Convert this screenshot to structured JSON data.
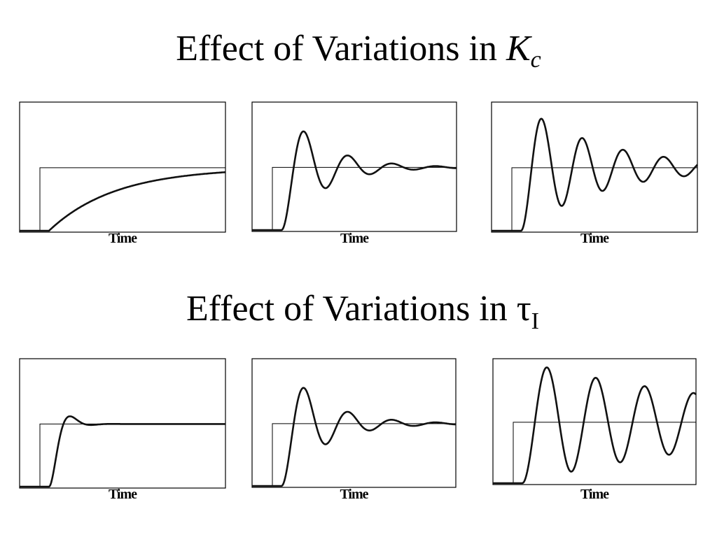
{
  "sections": [
    {
      "title": "Effect of Variations in ",
      "title_symbol": "K",
      "title_subscript": "c",
      "panels": [
        {
          "x_label": "Time"
        },
        {
          "x_label": "Time"
        },
        {
          "x_label": "Time"
        }
      ]
    },
    {
      "title": "Effect of Variations in ",
      "title_symbol": "τ",
      "title_subscript": "I",
      "panels": [
        {
          "x_label": "Time"
        },
        {
          "x_label": "Time"
        },
        {
          "x_label": "Time"
        }
      ]
    }
  ]
}
